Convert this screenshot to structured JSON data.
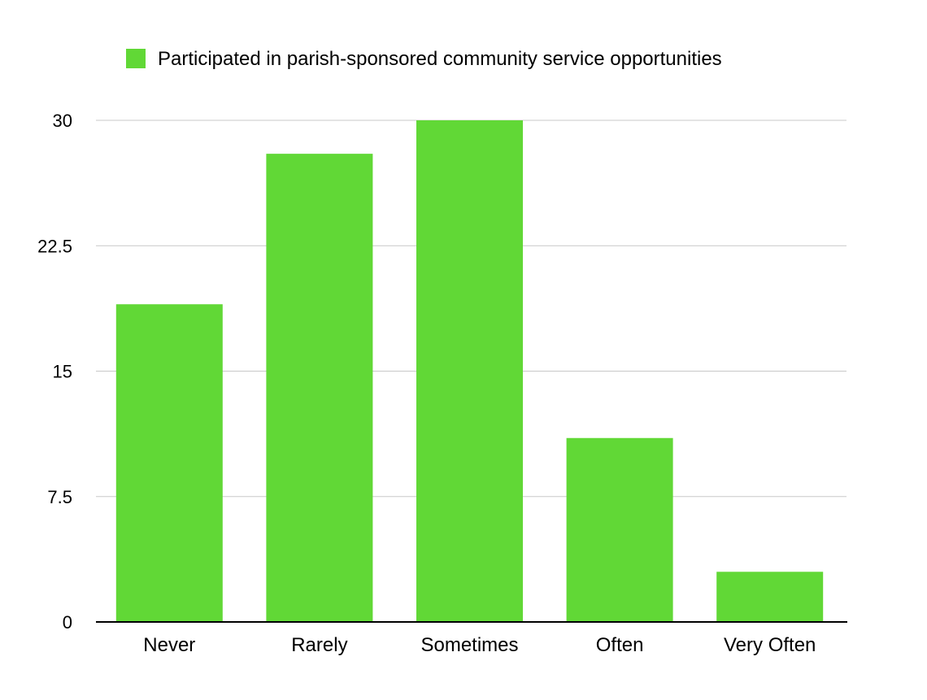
{
  "chart_data": {
    "type": "bar",
    "title": "",
    "xlabel": "",
    "ylabel": "",
    "categories": [
      "Never",
      "Rarely",
      "Sometimes",
      "Often",
      "Very Often"
    ],
    "series": [
      {
        "name": "Participated in parish-sponsored community service opportunities",
        "color": "#61d836",
        "values": [
          19,
          28,
          30,
          11,
          3
        ]
      }
    ],
    "ylim": [
      0,
      30
    ],
    "yticks": [
      "0",
      "7.5",
      "15",
      "22.5",
      "30"
    ],
    "grid": true,
    "legend_position": "top-left"
  }
}
